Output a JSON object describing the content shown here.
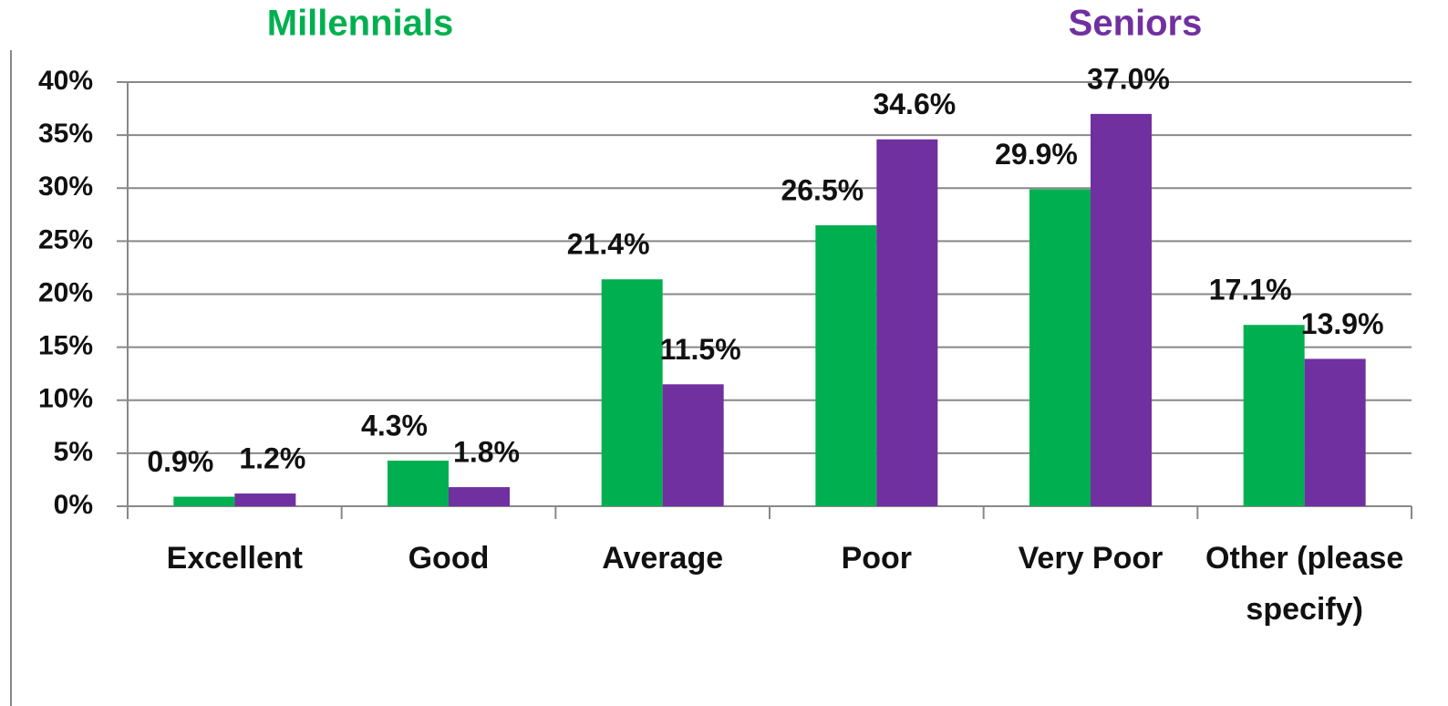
{
  "chart_data": {
    "type": "bar",
    "categories": [
      "Excellent",
      "Good",
      "Average",
      "Poor",
      "Very Poor",
      "Other (please specify)"
    ],
    "series": [
      {
        "name": "Millennials",
        "color": "#00b050",
        "values": [
          0.9,
          4.3,
          21.4,
          26.5,
          29.9,
          17.1
        ],
        "value_labels": [
          "0.9%",
          "4.3%",
          "21.4%",
          "26.5%",
          "29.9%",
          "17.1%"
        ]
      },
      {
        "name": "Seniors",
        "color": "#7030a0",
        "values": [
          1.2,
          1.8,
          11.5,
          34.6,
          37.0,
          13.9
        ],
        "value_labels": [
          "1.2%",
          "1.8%",
          "11.5%",
          "34.6%",
          "37.0%",
          "13.9%"
        ]
      }
    ],
    "ylim": [
      0,
      40
    ],
    "yticks": [
      {
        "value": 0,
        "label": "0%"
      },
      {
        "value": 5,
        "label": "5%"
      },
      {
        "value": 10,
        "label": "10%"
      },
      {
        "value": 15,
        "label": "15%"
      },
      {
        "value": 20,
        "label": "20%"
      },
      {
        "value": 25,
        "label": "25%"
      },
      {
        "value": 30,
        "label": "30%"
      },
      {
        "value": 35,
        "label": "35%"
      },
      {
        "value": 40,
        "label": "40%"
      }
    ],
    "grid": true
  }
}
